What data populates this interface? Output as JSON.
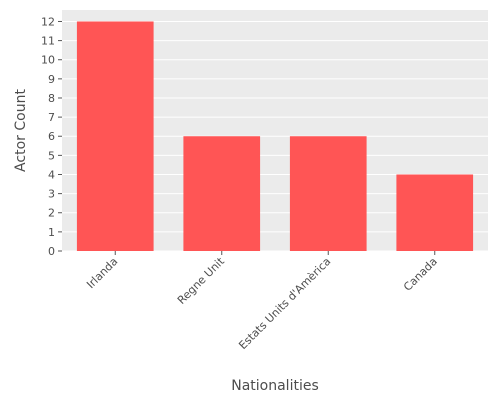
{
  "chart_data": {
    "type": "bar",
    "title": "",
    "xlabel": "Nationalities",
    "ylabel": "Actor Count",
    "categories": [
      "Irlanda",
      "Regne Unit",
      "Estats Units d'Amèrica",
      "Canada"
    ],
    "values": [
      12,
      6,
      6,
      4
    ],
    "ylim": [
      0,
      12.6
    ],
    "yticks": [
      0,
      1,
      2,
      3,
      4,
      5,
      6,
      7,
      8,
      9,
      10,
      11,
      12
    ],
    "grid": true,
    "legend": "none",
    "colors": {
      "bar": "#ff5555",
      "panel": "#ebebeb",
      "grid": "#ffffff",
      "text": "#4d4d4d"
    }
  }
}
